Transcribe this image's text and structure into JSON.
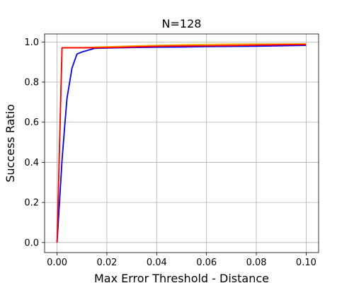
{
  "chart_data": {
    "type": "line",
    "title": "N=128",
    "xlabel": "Max Error Threshold - Distance",
    "ylabel": "Success Ratio",
    "xlim": [
      -0.005,
      0.105
    ],
    "ylim": [
      -0.05,
      1.04
    ],
    "xticks": [
      0.0,
      0.02,
      0.04,
      0.06,
      0.08,
      0.1
    ],
    "xtick_labels": [
      "0.00",
      "0.02",
      "0.04",
      "0.06",
      "0.08",
      "0.10"
    ],
    "yticks": [
      0.0,
      0.2,
      0.4,
      0.6,
      0.8,
      1.0
    ],
    "ytick_labels": [
      "0.0",
      "0.2",
      "0.4",
      "0.6",
      "0.8",
      "1.0"
    ],
    "grid": true,
    "legend": "none",
    "series": [
      {
        "color": "#ffa500",
        "x": [
          0.0,
          0.002,
          0.004,
          0.006,
          0.008,
          0.01,
          0.015,
          0.02,
          0.025,
          0.03,
          0.04,
          0.05,
          0.06,
          0.07,
          0.08,
          0.09,
          0.1
        ],
        "y": [
          0.0,
          0.972,
          0.972,
          0.972,
          0.972,
          0.972,
          0.974,
          0.976,
          0.978,
          0.98,
          0.983,
          0.986,
          0.988,
          0.989,
          0.99,
          0.99,
          0.991
        ]
      },
      {
        "color": "#0000ff",
        "x": [
          0.0,
          0.002,
          0.003,
          0.004,
          0.006,
          0.008,
          0.01,
          0.015,
          0.02,
          0.03,
          0.04,
          0.05,
          0.06,
          0.07,
          0.08,
          0.09,
          0.1
        ],
        "y": [
          0.0,
          0.41,
          0.57,
          0.72,
          0.87,
          0.94,
          0.95,
          0.968,
          0.97,
          0.972,
          0.974,
          0.975,
          0.977,
          0.978,
          0.979,
          0.981,
          0.983
        ]
      },
      {
        "color": "#ff0000",
        "x": [
          0.0,
          0.002,
          0.004,
          0.006,
          0.008,
          0.01,
          0.015,
          0.02,
          0.025,
          0.03,
          0.04,
          0.05,
          0.06,
          0.07,
          0.08,
          0.09,
          0.1
        ],
        "y": [
          0.0,
          0.971,
          0.971,
          0.971,
          0.971,
          0.971,
          0.971,
          0.972,
          0.973,
          0.975,
          0.978,
          0.98,
          0.981,
          0.982,
          0.984,
          0.986,
          0.987
        ]
      }
    ]
  }
}
